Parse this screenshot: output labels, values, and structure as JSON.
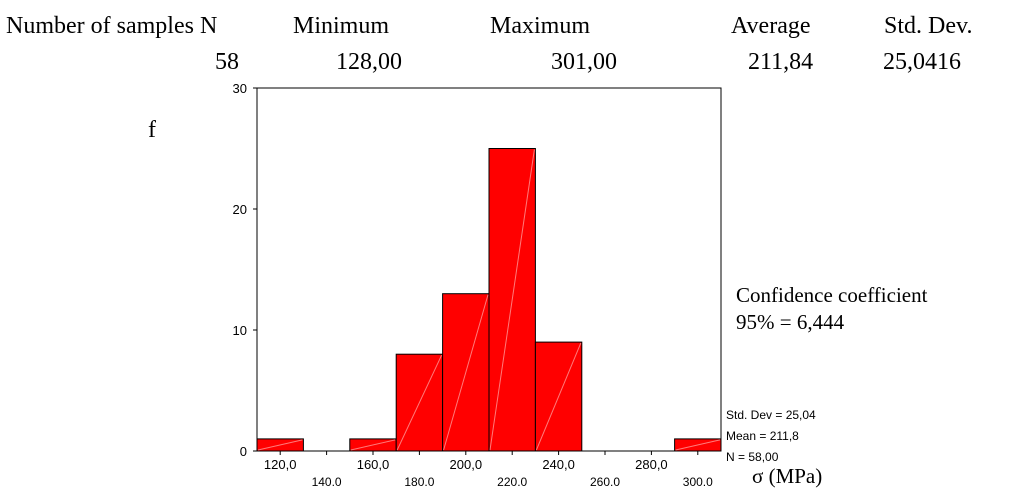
{
  "stats": {
    "headers": {
      "n": "Number of samples N",
      "min": "Minimum",
      "max": "Maximum",
      "avg": "Average",
      "std": "Std. Dev."
    },
    "values": {
      "n": "58",
      "min": "128,00",
      "max": "301,00",
      "avg": "211,84",
      "std": "25,0416"
    }
  },
  "annotations": {
    "confidence_line1": "Confidence coefficient",
    "confidence_line2": "95% = 6,444"
  },
  "chart_data": {
    "type": "bar",
    "title": "",
    "ylabel": "f",
    "xlabel": "σ (MPa)",
    "ylim": [
      0,
      30
    ],
    "xlim": [
      110,
      310
    ],
    "yticks": [
      0,
      10,
      20,
      30
    ],
    "xticks_top_row": [
      "120,0",
      "160,0",
      "200,0",
      "240,0",
      "280,0"
    ],
    "xticks_bottom_row": [
      "140.0",
      "180.0",
      "220.0",
      "260.0",
      "300.0"
    ],
    "bar_color": "#ff0000",
    "grid": false,
    "bins": [
      {
        "x0": 110,
        "x1": 130,
        "value": 1
      },
      {
        "x0": 130,
        "x1": 150,
        "value": 0
      },
      {
        "x0": 150,
        "x1": 170,
        "value": 1
      },
      {
        "x0": 170,
        "x1": 190,
        "value": 8
      },
      {
        "x0": 190,
        "x1": 210,
        "value": 13
      },
      {
        "x0": 210,
        "x1": 230,
        "value": 25
      },
      {
        "x0": 230,
        "x1": 250,
        "value": 9
      },
      {
        "x0": 250,
        "x1": 270,
        "value": 0
      },
      {
        "x0": 270,
        "x1": 290,
        "value": 0
      },
      {
        "x0": 290,
        "x1": 310,
        "value": 1
      }
    ],
    "legend": [
      "Std. Dev = 25,04",
      "Mean = 211,8",
      "N = 58,00"
    ]
  }
}
